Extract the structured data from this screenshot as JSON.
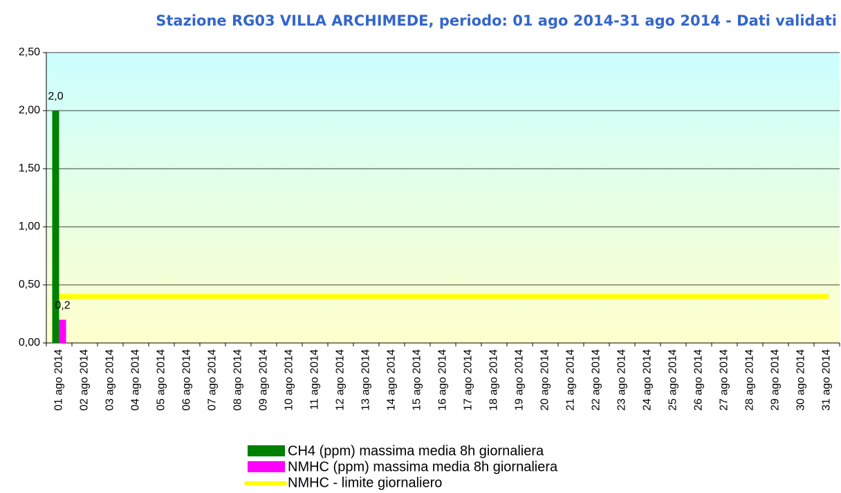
{
  "chart_data": {
    "type": "bar",
    "title": "Stazione RG03 VILLA ARCHIMEDE, periodo: 01 ago 2014-31 ago 2014 - Dati validati",
    "categories": [
      "01 ago 2014",
      "02 ago 2014",
      "03 ago 2014",
      "04 ago 2014",
      "05 ago 2014",
      "06 ago 2014",
      "07 ago 2014",
      "08 ago 2014",
      "09 ago 2014",
      "10 ago 2014",
      "11 ago 2014",
      "12 ago 2014",
      "13 ago 2014",
      "14 ago 2014",
      "15 ago 2014",
      "16 ago 2014",
      "17 ago 2014",
      "18 ago 2014",
      "19 ago 2014",
      "20 ago 2014",
      "21 ago 2014",
      "22 ago 2014",
      "23 ago 2014",
      "24 ago 2014",
      "25 ago 2014",
      "26 ago 2014",
      "27 ago 2014",
      "28 ago 2014",
      "29 ago 2014",
      "30 ago 2014",
      "31 ago 2014"
    ],
    "series": [
      {
        "name": "CH4 (ppm) massima media 8h giornaliera",
        "type": "bar",
        "color": "#008000",
        "values": [
          2.0,
          null,
          null,
          null,
          null,
          null,
          null,
          null,
          null,
          null,
          null,
          null,
          null,
          null,
          null,
          null,
          null,
          null,
          null,
          null,
          null,
          null,
          null,
          null,
          null,
          null,
          null,
          null,
          null,
          null,
          null
        ],
        "value_labels": [
          "2,0",
          null,
          null,
          null,
          null,
          null,
          null,
          null,
          null,
          null,
          null,
          null,
          null,
          null,
          null,
          null,
          null,
          null,
          null,
          null,
          null,
          null,
          null,
          null,
          null,
          null,
          null,
          null,
          null,
          null,
          null
        ]
      },
      {
        "name": "NMHC (ppm) massima media 8h giornaliera",
        "type": "bar",
        "color": "#ff00ff",
        "values": [
          0.2,
          null,
          null,
          null,
          null,
          null,
          null,
          null,
          null,
          null,
          null,
          null,
          null,
          null,
          null,
          null,
          null,
          null,
          null,
          null,
          null,
          null,
          null,
          null,
          null,
          null,
          null,
          null,
          null,
          null,
          null
        ],
        "value_labels": [
          "0,2",
          null,
          null,
          null,
          null,
          null,
          null,
          null,
          null,
          null,
          null,
          null,
          null,
          null,
          null,
          null,
          null,
          null,
          null,
          null,
          null,
          null,
          null,
          null,
          null,
          null,
          null,
          null,
          null,
          null,
          null
        ]
      },
      {
        "name": "NMHC - limite giornaliero",
        "type": "line",
        "color": "#ffff00",
        "values": [
          0.4,
          0.4,
          0.4,
          0.4,
          0.4,
          0.4,
          0.4,
          0.4,
          0.4,
          0.4,
          0.4,
          0.4,
          0.4,
          0.4,
          0.4,
          0.4,
          0.4,
          0.4,
          0.4,
          0.4,
          0.4,
          0.4,
          0.4,
          0.4,
          0.4,
          0.4,
          0.4,
          0.4,
          0.4,
          0.4,
          0.4
        ]
      }
    ],
    "ylim": [
      0,
      2.5
    ],
    "yticks": [
      {
        "value": 0,
        "label": "0,00"
      },
      {
        "value": 0.5,
        "label": "0,50"
      },
      {
        "value": 1,
        "label": "1,00"
      },
      {
        "value": 1.5,
        "label": "1,50"
      },
      {
        "value": 2,
        "label": "2,00"
      },
      {
        "value": 2.5,
        "label": "2,50"
      }
    ],
    "grid": true,
    "legend": "bottom"
  }
}
